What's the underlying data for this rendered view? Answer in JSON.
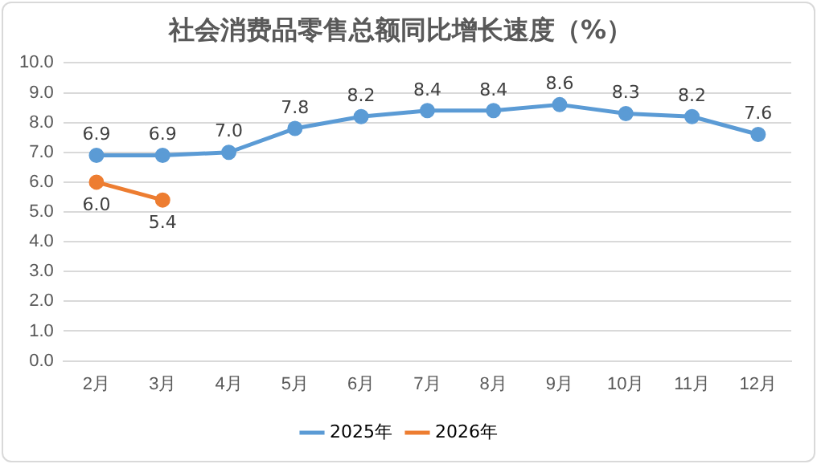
{
  "chart_data": {
    "type": "line",
    "title": "社会消费品零售总额同比增长速度（%）",
    "categories": [
      "2月",
      "3月",
      "4月",
      "5月",
      "6月",
      "7月",
      "8月",
      "9月",
      "10月",
      "11月",
      "12月"
    ],
    "series": [
      {
        "name": "2025年",
        "color": "#5b9bd5",
        "values": [
          6.9,
          6.9,
          7.0,
          7.8,
          8.2,
          8.4,
          8.4,
          8.6,
          8.3,
          8.2,
          7.6
        ],
        "value_labels": [
          "6.9",
          "6.9",
          "7.0",
          "7.8",
          "8.2",
          "8.4",
          "8.4",
          "8.6",
          "8.3",
          "8.2",
          "7.6"
        ]
      },
      {
        "name": "2026年",
        "color": "#ed7d31",
        "values": [
          6.0,
          5.4,
          null,
          null,
          null,
          null,
          null,
          null,
          null,
          null,
          null
        ],
        "value_labels": [
          "6.0",
          "5.4",
          null,
          null,
          null,
          null,
          null,
          null,
          null,
          null,
          null
        ]
      }
    ],
    "ylim": [
      0,
      10
    ],
    "yticks": [
      {
        "value": 0,
        "label": "0.0"
      },
      {
        "value": 1,
        "label": "1.0"
      },
      {
        "value": 2,
        "label": "2.0"
      },
      {
        "value": 3,
        "label": "3.0"
      },
      {
        "value": 4,
        "label": "4.0"
      },
      {
        "value": 5,
        "label": "5.0"
      },
      {
        "value": 6,
        "label": "6.0"
      },
      {
        "value": 7,
        "label": "7.0"
      },
      {
        "value": 8,
        "label": "8.0"
      },
      {
        "value": 9,
        "label": "9.0"
      },
      {
        "value": 10,
        "label": "10.0"
      }
    ],
    "grid": "y",
    "legend": "bottom",
    "marker": "circle",
    "line_style": "solid"
  }
}
